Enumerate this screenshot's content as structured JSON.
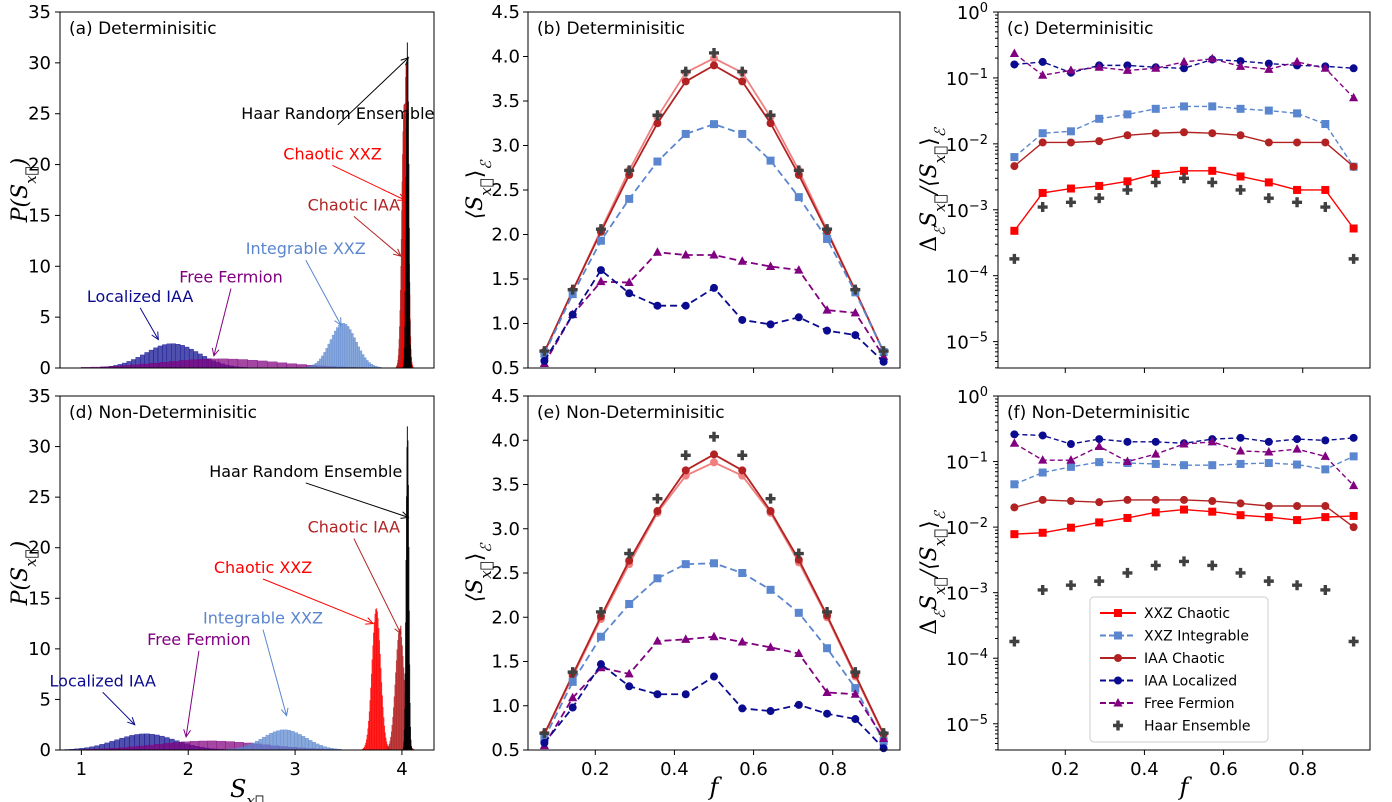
{
  "colors": {
    "xxz_chaotic": "#ff0000",
    "xxz_integrable": "#5a86cf",
    "iaa_chaotic": "#b22222",
    "iaa_localized": "#0b0b8f",
    "free_fermion": "#800080",
    "haar": "#404040",
    "haar_hist": "#000000",
    "xxz_chaotic_light": "#f08080"
  },
  "legend": [
    {
      "key": "xxz_chaotic",
      "label": "XXZ Chaotic",
      "marker": "square",
      "dash": "solid"
    },
    {
      "key": "xxz_integrable",
      "label": "XXZ Integrable",
      "marker": "square",
      "dash": "dashed"
    },
    {
      "key": "iaa_chaotic",
      "label": "IAA Chaotic",
      "marker": "circle",
      "dash": "solid"
    },
    {
      "key": "iaa_localized",
      "label": "IAA Localized",
      "marker": "circle",
      "dash": "dashed"
    },
    {
      "key": "free_fermion",
      "label": "Free Fermion",
      "marker": "triangle",
      "dash": "dashed"
    },
    {
      "key": "haar",
      "label": "Haar Ensemble",
      "marker": "plus",
      "dash": "none"
    }
  ],
  "chart_data": [
    {
      "id": "a",
      "type": "histogram",
      "title": "(a) Deterministic",
      "title_text": "(a) Determinisitic",
      "ylabel": "P(S_x)",
      "xlabel": "",
      "xlim": [
        0.8,
        4.3
      ],
      "ylim": [
        0,
        35
      ],
      "yticks": [
        0,
        5,
        10,
        15,
        20,
        25,
        30,
        35
      ],
      "xticks": [],
      "distributions": [
        {
          "key": "iaa_localized",
          "mu": 1.85,
          "sigma": 0.25,
          "peak": 2.4
        },
        {
          "key": "free_fermion",
          "mu": 2.3,
          "sigma": 0.55,
          "peak": 0.9
        },
        {
          "key": "xxz_integrable",
          "mu": 3.45,
          "sigma": 0.12,
          "peak": 4.4
        },
        {
          "key": "iaa_chaotic",
          "mu": 4.02,
          "sigma": 0.022,
          "peak": 26
        },
        {
          "key": "xxz_chaotic",
          "mu": 4.04,
          "sigma": 0.018,
          "peak": 30
        },
        {
          "key": "haar_hist",
          "mu": 4.05,
          "sigma": 0.012,
          "peak": 32
        }
      ],
      "annotations": [
        {
          "text": "Haar Random Ensemble",
          "key": "haar_hist",
          "tx": 3.4,
          "ty": 24.5,
          "ax": 4.06,
          "ay": 30.5
        },
        {
          "text": "Chaotic XXZ",
          "key": "xxz_chaotic",
          "tx": 3.35,
          "ty": 20.5,
          "ax": 4.03,
          "ay": 16.5
        },
        {
          "text": "Chaotic IAA",
          "key": "iaa_chaotic",
          "tx": 3.55,
          "ty": 15.5,
          "ax": 3.99,
          "ay": 11.0
        },
        {
          "text": "Integrable XXZ",
          "key": "xxz_integrable",
          "tx": 3.1,
          "ty": 11.2,
          "ax": 3.43,
          "ay": 4.2
        },
        {
          "text": "Free Fermion",
          "key": "free_fermion",
          "tx": 2.4,
          "ty": 8.4,
          "ax": 2.24,
          "ay": 1.2
        },
        {
          "text": "Localized IAA",
          "key": "iaa_localized",
          "tx": 1.55,
          "ty": 6.5,
          "ax": 1.72,
          "ay": 2.8
        }
      ],
      "label_texts": [
        "Haar Random Ensemble",
        "Chaotic XXZ",
        "Chaotic IAA",
        "Integrable XXZ",
        "Free Fermion",
        "Localized IAA"
      ]
    },
    {
      "id": "d",
      "type": "histogram",
      "title": "(d) Non-Deterministic",
      "title_text": "(d) Non-Determinisitic",
      "ylabel": "P(S_x)",
      "xlabel": "S_x",
      "xlim": [
        0.8,
        4.3
      ],
      "ylim": [
        0,
        35
      ],
      "yticks": [
        0,
        5,
        10,
        15,
        20,
        25,
        30,
        35
      ],
      "xticks": [
        1,
        2,
        3,
        4
      ],
      "distributions": [
        {
          "key": "iaa_localized",
          "mu": 1.6,
          "sigma": 0.28,
          "peak": 1.6
        },
        {
          "key": "free_fermion",
          "mu": 2.2,
          "sigma": 0.5,
          "peak": 0.9
        },
        {
          "key": "xxz_integrable",
          "mu": 2.9,
          "sigma": 0.2,
          "peak": 2.0
        },
        {
          "key": "xxz_chaotic",
          "mu": 3.76,
          "sigma": 0.04,
          "peak": 14
        },
        {
          "key": "iaa_chaotic",
          "mu": 3.98,
          "sigma": 0.04,
          "peak": 12
        },
        {
          "key": "haar_hist",
          "mu": 4.05,
          "sigma": 0.012,
          "peak": 32
        }
      ],
      "annotations": [
        {
          "text": "Haar Random Ensemble",
          "key": "haar_hist",
          "tx": 3.1,
          "ty": 27,
          "ax": 4.06,
          "ay": 23
        },
        {
          "text": "Chaotic IAA",
          "key": "iaa_chaotic",
          "tx": 3.55,
          "ty": 21.5,
          "ax": 3.99,
          "ay": 11.5
        },
        {
          "text": "Chaotic XXZ",
          "key": "xxz_chaotic",
          "tx": 2.7,
          "ty": 17.5,
          "ax": 3.73,
          "ay": 12.5
        },
        {
          "text": "Integrable XXZ",
          "key": "xxz_integrable",
          "tx": 2.7,
          "ty": 12.5,
          "ax": 2.92,
          "ay": 3.4
        },
        {
          "text": "Free Fermion",
          "key": "free_fermion",
          "tx": 2.1,
          "ty": 10.4,
          "ax": 1.98,
          "ay": 1.3
        },
        {
          "text": "Localized IAA",
          "key": "iaa_localized",
          "tx": 1.2,
          "ty": 6.3,
          "ax": 1.5,
          "ay": 2.5
        }
      ],
      "label_texts": [
        "Haar Random Ensemble",
        "Chaotic IAA",
        "Chaotic XXZ",
        "Integrable XXZ",
        "Free Fermion",
        "Localized IAA"
      ]
    },
    {
      "id": "b",
      "type": "line",
      "title_text": "(b) Determinisitic",
      "ylabel": "<S_x>_E",
      "xlabel": "",
      "xlim": [
        0.03,
        0.97
      ],
      "ylim": [
        0.5,
        4.5
      ],
      "yticks": [
        "0.5",
        "1.0",
        "1.5",
        "2.0",
        "2.5",
        "3.0",
        "3.5",
        "4.0",
        "4.5"
      ],
      "xticks": [],
      "x": [
        0.0714,
        0.1429,
        0.2143,
        0.2857,
        0.3571,
        0.4286,
        0.5,
        0.5714,
        0.6429,
        0.7143,
        0.7857,
        0.8571,
        0.9286
      ],
      "series": [
        {
          "key": "xxz_chaotic_light",
          "marker": "circle",
          "dash": "solid",
          "values": [
            0.68,
            1.37,
            2.05,
            2.72,
            3.32,
            3.82,
            3.98,
            3.82,
            3.32,
            2.72,
            2.05,
            1.37,
            0.68
          ]
        },
        {
          "key": "iaa_chaotic",
          "marker": "circle",
          "dash": "solid",
          "values": [
            0.68,
            1.37,
            2.03,
            2.67,
            3.25,
            3.72,
            3.9,
            3.72,
            3.25,
            2.67,
            2.03,
            1.37,
            0.68
          ]
        },
        {
          "key": "xxz_integrable",
          "marker": "square",
          "dash": "dashed",
          "values": [
            0.66,
            1.33,
            1.93,
            2.4,
            2.82,
            3.13,
            3.24,
            3.13,
            2.83,
            2.42,
            1.95,
            1.35,
            0.68
          ]
        },
        {
          "key": "free_fermion",
          "marker": "triangle",
          "dash": "dashed",
          "values": [
            0.55,
            1.1,
            1.47,
            1.46,
            1.8,
            1.77,
            1.77,
            1.7,
            1.64,
            1.6,
            1.15,
            1.12,
            0.63
          ]
        },
        {
          "key": "iaa_localized",
          "marker": "circle",
          "dash": "dashed",
          "values": [
            0.58,
            1.1,
            1.6,
            1.34,
            1.2,
            1.2,
            1.4,
            1.04,
            0.99,
            1.07,
            0.92,
            0.87,
            0.57
          ]
        },
        {
          "key": "haar",
          "marker": "plus",
          "dash": "none",
          "values": [
            0.69,
            1.38,
            2.06,
            2.72,
            3.34,
            3.83,
            4.04,
            3.83,
            3.34,
            2.72,
            2.06,
            1.38,
            0.69
          ]
        }
      ]
    },
    {
      "id": "e",
      "type": "line",
      "title_text": "(e) Non-Determinisitic",
      "ylabel": "<S_x>_E",
      "xlabel": "f",
      "xlim": [
        0.03,
        0.97
      ],
      "ylim": [
        0.5,
        4.5
      ],
      "yticks": [
        "0.5",
        "1.0",
        "1.5",
        "2.0",
        "2.5",
        "3.0",
        "3.5",
        "4.0",
        "4.5"
      ],
      "xticks": [
        "0.2",
        "0.4",
        "0.6",
        "0.8"
      ],
      "x": [
        0.0714,
        0.1429,
        0.2143,
        0.2857,
        0.3571,
        0.4286,
        0.5,
        0.5714,
        0.6429,
        0.7143,
        0.7857,
        0.8571,
        0.9286
      ],
      "series": [
        {
          "key": "xxz_chaotic_light",
          "marker": "circle",
          "dash": "solid",
          "values": [
            0.68,
            1.33,
            1.98,
            2.6,
            3.18,
            3.6,
            3.75,
            3.6,
            3.18,
            2.62,
            2.0,
            1.33,
            0.67
          ]
        },
        {
          "key": "iaa_chaotic",
          "marker": "circle",
          "dash": "solid",
          "values": [
            0.68,
            1.35,
            2.01,
            2.64,
            3.2,
            3.66,
            3.84,
            3.66,
            3.2,
            2.65,
            2.02,
            1.35,
            0.68
          ]
        },
        {
          "key": "xxz_integrable",
          "marker": "square",
          "dash": "dashed",
          "values": [
            0.63,
            1.27,
            1.78,
            2.15,
            2.44,
            2.6,
            2.61,
            2.5,
            2.31,
            2.05,
            1.65,
            1.2,
            0.6
          ]
        },
        {
          "key": "free_fermion",
          "marker": "triangle",
          "dash": "dashed",
          "values": [
            0.55,
            1.09,
            1.43,
            1.36,
            1.73,
            1.75,
            1.78,
            1.72,
            1.66,
            1.59,
            1.15,
            1.13,
            0.63
          ]
        },
        {
          "key": "iaa_localized",
          "marker": "circle",
          "dash": "dashed",
          "values": [
            0.58,
            0.98,
            1.47,
            1.22,
            1.13,
            1.13,
            1.33,
            0.97,
            0.94,
            1.01,
            0.91,
            0.85,
            0.52
          ]
        },
        {
          "key": "haar",
          "marker": "plus",
          "dash": "none",
          "values": [
            0.69,
            1.38,
            2.06,
            2.72,
            3.34,
            3.83,
            4.04,
            3.83,
            3.34,
            2.72,
            2.06,
            1.38,
            0.69
          ]
        }
      ]
    },
    {
      "id": "c",
      "type": "line",
      "scale": "log",
      "title_text": "(c) Determinisitic",
      "ylabel": "Delta S / <S>",
      "xlabel": "",
      "xlim": [
        0.03,
        0.97
      ],
      "ylim": [
        -5.4,
        0
      ],
      "ytick_exps": [
        "0",
        "-1",
        "-2",
        "-3",
        "-4",
        "-5"
      ],
      "xticks": [],
      "x": [
        0.0714,
        0.1429,
        0.2143,
        0.2857,
        0.3571,
        0.4286,
        0.5,
        0.5714,
        0.6429,
        0.7143,
        0.7857,
        0.8571,
        0.9286
      ],
      "series": [
        {
          "key": "xxz_chaotic",
          "marker": "square",
          "dash": "solid",
          "values": [
            0.00048,
            0.0018,
            0.0021,
            0.0023,
            0.0027,
            0.0035,
            0.0039,
            0.0039,
            0.0032,
            0.0026,
            0.002,
            0.002,
            0.00052
          ]
        },
        {
          "key": "xxz_integrable",
          "marker": "square",
          "dash": "dashed",
          "values": [
            0.0063,
            0.0145,
            0.0155,
            0.024,
            0.028,
            0.034,
            0.037,
            0.037,
            0.034,
            0.032,
            0.029,
            0.02,
            0.0045
          ]
        },
        {
          "key": "iaa_chaotic",
          "marker": "circle",
          "dash": "solid",
          "values": [
            0.0046,
            0.0105,
            0.0105,
            0.011,
            0.0135,
            0.0145,
            0.015,
            0.0145,
            0.0135,
            0.0105,
            0.0105,
            0.0105,
            0.0045
          ]
        },
        {
          "key": "iaa_localized",
          "marker": "circle",
          "dash": "dashed",
          "values": [
            0.16,
            0.175,
            0.12,
            0.155,
            0.155,
            0.145,
            0.14,
            0.19,
            0.18,
            0.165,
            0.155,
            0.15,
            0.14
          ]
        },
        {
          "key": "free_fermion",
          "marker": "triangle",
          "dash": "dashed",
          "values": [
            0.235,
            0.11,
            0.13,
            0.145,
            0.13,
            0.14,
            0.175,
            0.195,
            0.15,
            0.135,
            0.175,
            0.14,
            0.05
          ]
        },
        {
          "key": "haar",
          "marker": "plus",
          "dash": "none",
          "values": [
            0.00018,
            0.0011,
            0.0013,
            0.0015,
            0.002,
            0.0026,
            0.003,
            0.0026,
            0.002,
            0.0015,
            0.0013,
            0.0011,
            0.00018
          ]
        }
      ]
    },
    {
      "id": "f",
      "type": "line",
      "scale": "log",
      "title_text": "(f) Non-Determinisitic",
      "ylabel": "Delta S / <S>",
      "xlabel": "f",
      "xlim": [
        0.03,
        0.97
      ],
      "ylim": [
        -5.4,
        0
      ],
      "ytick_exps": [
        "0",
        "-1",
        "-2",
        "-3",
        "-4",
        "-5"
      ],
      "xticks": [
        "0.2",
        "0.4",
        "0.6",
        "0.8"
      ],
      "x": [
        0.0714,
        0.1429,
        0.2143,
        0.2857,
        0.3571,
        0.4286,
        0.5,
        0.5714,
        0.6429,
        0.7143,
        0.7857,
        0.8571,
        0.9286
      ],
      "series": [
        {
          "key": "xxz_chaotic",
          "marker": "square",
          "dash": "solid",
          "values": [
            0.0078,
            0.0082,
            0.0098,
            0.0118,
            0.0138,
            0.0168,
            0.0185,
            0.0172,
            0.0152,
            0.0142,
            0.0128,
            0.0142,
            0.0148
          ]
        },
        {
          "key": "xxz_integrable",
          "marker": "square",
          "dash": "dashed",
          "values": [
            0.045,
            0.068,
            0.083,
            0.098,
            0.095,
            0.092,
            0.088,
            0.088,
            0.092,
            0.095,
            0.09,
            0.076,
            0.12
          ]
        },
        {
          "key": "iaa_chaotic",
          "marker": "circle",
          "dash": "solid",
          "values": [
            0.02,
            0.026,
            0.025,
            0.024,
            0.026,
            0.026,
            0.026,
            0.025,
            0.023,
            0.021,
            0.021,
            0.021,
            0.01
          ]
        },
        {
          "key": "iaa_localized",
          "marker": "circle",
          "dash": "dashed",
          "values": [
            0.26,
            0.25,
            0.185,
            0.22,
            0.2,
            0.2,
            0.19,
            0.22,
            0.23,
            0.2,
            0.22,
            0.21,
            0.23
          ]
        },
        {
          "key": "free_fermion",
          "marker": "triangle",
          "dash": "dashed",
          "values": [
            0.19,
            0.105,
            0.105,
            0.17,
            0.1,
            0.13,
            0.185,
            0.2,
            0.145,
            0.14,
            0.155,
            0.12,
            0.043
          ]
        },
        {
          "key": "haar",
          "marker": "plus",
          "dash": "none",
          "values": [
            0.00018,
            0.0011,
            0.0013,
            0.0015,
            0.002,
            0.0026,
            0.003,
            0.0026,
            0.002,
            0.0015,
            0.0013,
            0.0011,
            0.00018
          ]
        }
      ],
      "legend_position": "lower-center"
    }
  ]
}
